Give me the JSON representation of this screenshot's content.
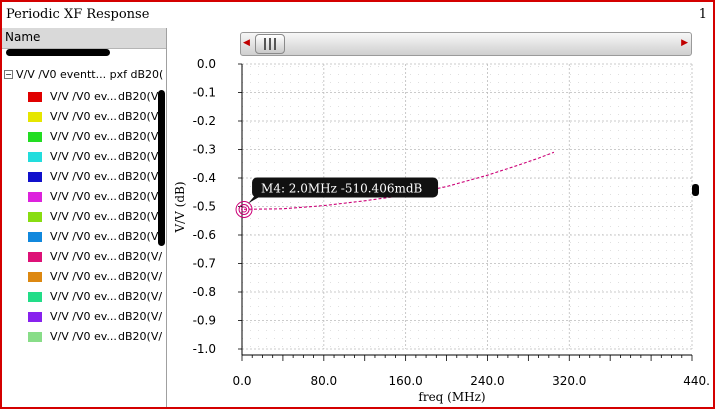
{
  "window": {
    "title": "Periodic XF Response",
    "page_number": "1"
  },
  "panel": {
    "header": "Name",
    "root_label": "V/V /V0 eventt... pxf dB20(",
    "legend": [
      {
        "name": "V/V /V0 ev...",
        "expr": "dB20(V/",
        "color": "#e00000"
      },
      {
        "name": "V/V /V0 ev...",
        "expr": "dB20(V/",
        "color": "#e6e600"
      },
      {
        "name": "V/V /V0 ev...",
        "expr": "dB20(V/",
        "color": "#22dd22"
      },
      {
        "name": "V/V /V0 ev...",
        "expr": "dB20(V/",
        "color": "#22dddd"
      },
      {
        "name": "V/V /V0 ev...",
        "expr": "dB20(V/",
        "color": "#1010cc"
      },
      {
        "name": "V/V /V0 ev...",
        "expr": "dB20(V/",
        "color": "#dd22dd"
      },
      {
        "name": "V/V /V0 ev...",
        "expr": "dB20(V/",
        "color": "#88dd11"
      },
      {
        "name": "V/V /V0 ev...",
        "expr": "dB20(V/",
        "color": "#1188dd"
      },
      {
        "name": "V/V /V0 ev...",
        "expr": "dB20(V/",
        "color": "#dd1177"
      },
      {
        "name": "V/V /V0 ev...",
        "expr": "dB20(V/",
        "color": "#dd8811"
      },
      {
        "name": "V/V /V0 ev...",
        "expr": "dB20(V/",
        "color": "#22dd88"
      },
      {
        "name": "V/V /V0 ev...",
        "expr": "dB20(V/",
        "color": "#8822ee"
      },
      {
        "name": "V/V /V0 ev...",
        "expr": "dB20(V/",
        "color": "#88dd88"
      }
    ]
  },
  "chart_data": {
    "type": "line",
    "xlabel": "freq (MHz)",
    "ylabel": "V/V (dB)",
    "xlim": [
      0,
      440
    ],
    "ylim": [
      -1.0,
      0.0
    ],
    "x_ticks": [
      "0.0",
      "80.0",
      "160.0",
      "240.0",
      "320.0",
      "440."
    ],
    "x_tick_values": [
      0,
      80,
      160,
      240,
      320,
      440
    ],
    "y_ticks": [
      "0.0",
      "-0.1",
      "-0.2",
      "-0.3",
      "-0.4",
      "-0.5",
      "-0.6",
      "-0.7",
      "-0.8",
      "-0.9",
      "-1.0"
    ],
    "y_tick_values": [
      0.0,
      -0.1,
      -0.2,
      -0.3,
      -0.4,
      -0.5,
      -0.6,
      -0.7,
      -0.8,
      -0.9,
      -1.0
    ],
    "grid": true,
    "series": [
      {
        "color": "#cc0077",
        "style": "dashed",
        "x": [
          2,
          40,
          80,
          120,
          160,
          200,
          240,
          270,
          290,
          305
        ],
        "y": [
          -0.51,
          -0.508,
          -0.497,
          -0.48,
          -0.46,
          -0.43,
          -0.39,
          -0.355,
          -0.33,
          -0.31
        ]
      }
    ],
    "marker": {
      "label": "M4: 2.0MHz -510.406mdB",
      "x": 2.0,
      "y": -0.510406
    }
  }
}
